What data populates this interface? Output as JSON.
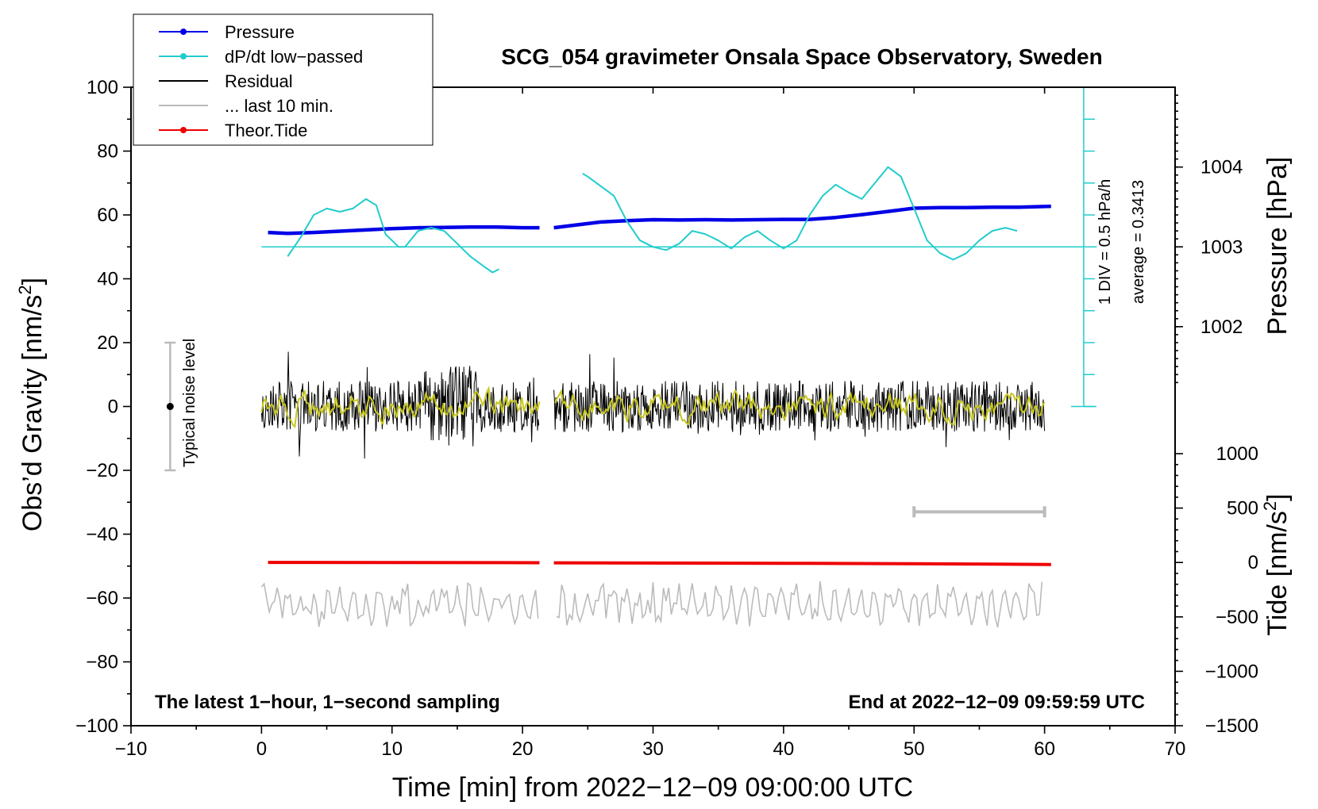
{
  "chart_data": {
    "type": "line",
    "title": "SCG_054 gravimeter Onsala Space Observatory, Sweden",
    "xlabel": "Time [min] from 2022−12−09 09:00:00 UTC",
    "ylabel_left_main": "Obs’d Gravity [nm/s",
    "ylabel_left_sup": "2",
    "ylabel_left_tail": "]",
    "ylabel_right_pressure": "Pressure [hPa]",
    "ylabel_right_tide_main": "Tide [nm/s",
    "ylabel_right_tide_sup": "2",
    "ylabel_right_tide_tail": "]",
    "xlim": [
      -10,
      70
    ],
    "ylim": [
      -100,
      100
    ],
    "x_ticks": [
      {
        "value": -10,
        "label": "−10"
      },
      {
        "value": 0,
        "label": "0"
      },
      {
        "value": 10,
        "label": "10"
      },
      {
        "value": 20,
        "label": "20"
      },
      {
        "value": 30,
        "label": "30"
      },
      {
        "value": 40,
        "label": "40"
      },
      {
        "value": 50,
        "label": "50"
      },
      {
        "value": 60,
        "label": "60"
      },
      {
        "value": 70,
        "label": "70"
      }
    ],
    "y_ticks": [
      {
        "value": 100,
        "label": "100"
      },
      {
        "value": 80,
        "label": "80"
      },
      {
        "value": 60,
        "label": "60"
      },
      {
        "value": 40,
        "label": "40"
      },
      {
        "value": 20,
        "label": "20"
      },
      {
        "value": 0,
        "label": "0"
      },
      {
        "value": -20,
        "label": "−20"
      },
      {
        "value": -40,
        "label": "−40"
      },
      {
        "value": -60,
        "label": "−60"
      },
      {
        "value": -80,
        "label": "−80"
      },
      {
        "value": -100,
        "label": "−100"
      }
    ],
    "pressure_axis": {
      "ticks": [
        {
          "value": 1004,
          "label": "1004"
        },
        {
          "value": 1003,
          "label": "1003"
        },
        {
          "value": 1002,
          "label": "1002"
        }
      ],
      "gravity_per_hpa": 25,
      "gravity_at_1003": 50
    },
    "tide_axis": {
      "ticks": [
        {
          "value": 1000,
          "label": "1000"
        },
        {
          "value": 500,
          "label": "500"
        },
        {
          "value": 0,
          "label": "0"
        },
        {
          "value": -500,
          "label": "−500"
        },
        {
          "value": -1000,
          "label": "−1000"
        },
        {
          "value": -1500,
          "label": "−1500"
        }
      ],
      "range": [
        -1500,
        1000
      ]
    },
    "dpdt_scale": {
      "div_label": "1 DIV = 0.5 hPa/h",
      "average_label": "average = 0.3413",
      "baseline_gravity": 50,
      "x_min": 63
    },
    "noise_label": "Typical noise level",
    "noise_bar": {
      "x": -7,
      "low": -20,
      "high": 20,
      "center": 0
    },
    "last10_bar": {
      "x_start": 50,
      "x_end": 60,
      "y": -33
    },
    "footer_left": "The latest 1−hour, 1−second sampling",
    "footer_right": "End at 2022−12−09 09:59:59 UTC",
    "legend": [
      {
        "label": "Pressure",
        "color": "#0000e6",
        "marker": true
      },
      {
        "label": "dP/dt low−passed",
        "color": "#22cccc",
        "marker": true
      },
      {
        "label": "Residual",
        "color": "#000000",
        "marker": false
      },
      {
        "label": "... last 10 min.",
        "color": "#bbbbbb",
        "marker": false
      },
      {
        "label": "Theor.Tide",
        "color": "#ee0000",
        "marker": true
      }
    ],
    "gap": [
      21.3,
      22.4
    ],
    "series": [
      {
        "name": "Pressure",
        "color": "#0000e6",
        "axis": "gravity",
        "x": [
          0.5,
          2,
          4,
          6,
          8,
          10,
          12,
          14,
          16,
          18,
          20,
          21.3,
          22.4,
          24,
          26,
          28,
          30,
          32,
          34,
          36,
          38,
          40,
          42,
          44,
          46,
          48,
          50,
          52,
          54,
          56,
          58,
          60.5
        ],
        "values": [
          54.5,
          54.2,
          54.5,
          54.9,
          55.3,
          55.7,
          56,
          56.1,
          56.2,
          56.2,
          56,
          56,
          56,
          56.8,
          57.8,
          58.2,
          58.5,
          58.4,
          58.5,
          58.4,
          58.5,
          58.6,
          58.6,
          59.2,
          60.1,
          61.1,
          62.1,
          62.3,
          62.3,
          62.4,
          62.4,
          62.7
        ]
      },
      {
        "name": "dP/dt low−passed",
        "color": "#22cccc",
        "axis": "gravity",
        "x": [
          2,
          3,
          4,
          5,
          6,
          7,
          8,
          8.8,
          9.5,
          10.5,
          11,
          12,
          13,
          14,
          15,
          16,
          17,
          17.7,
          18.2,
          24.6,
          25,
          26,
          27,
          28,
          29,
          30,
          31,
          32,
          33,
          34,
          35,
          36,
          37,
          38,
          39,
          40,
          41,
          42,
          43,
          44,
          45,
          46,
          47,
          48,
          49,
          50,
          51,
          52,
          53,
          54,
          55,
          56,
          57,
          57.9
        ],
        "values": [
          47,
          53,
          60,
          62,
          61,
          62,
          65,
          63,
          54,
          50,
          50,
          55,
          56,
          55,
          51,
          47,
          44,
          42,
          43,
          73,
          72,
          69,
          66,
          58,
          52,
          50,
          49,
          51,
          55,
          54,
          52,
          49.5,
          53,
          55,
          52,
          49.5,
          52,
          60,
          66,
          69.5,
          67,
          65,
          70,
          75,
          72,
          62,
          52,
          48,
          46,
          48,
          52,
          55,
          56,
          55
        ]
      },
      {
        "name": "Residual",
        "color": "#000000",
        "axis": "gravity",
        "noise_amplitude": 8,
        "y_center": 0,
        "x_range": [
          0,
          60
        ]
      },
      {
        "name": "Residual smoothed",
        "color": "#c8c81e",
        "axis": "gravity",
        "noise_amplitude": 4,
        "y_center": 0,
        "x_range": [
          0,
          60
        ]
      },
      {
        "name": "Theor.Tide",
        "color": "#ee0000",
        "axis": "tide",
        "x": [
          0.5,
          10,
          21.3,
          22.4,
          30,
          40,
          50,
          60.5
        ],
        "values": [
          1,
          0,
          -2,
          -3,
          -5,
          -7,
          -12,
          -18
        ]
      },
      {
        "name": "... last 10 min.",
        "color": "#bbbbbb",
        "axis": "gravity",
        "noise_amplitude": 5,
        "y_center": -62,
        "x_range": [
          0,
          60
        ]
      }
    ]
  }
}
